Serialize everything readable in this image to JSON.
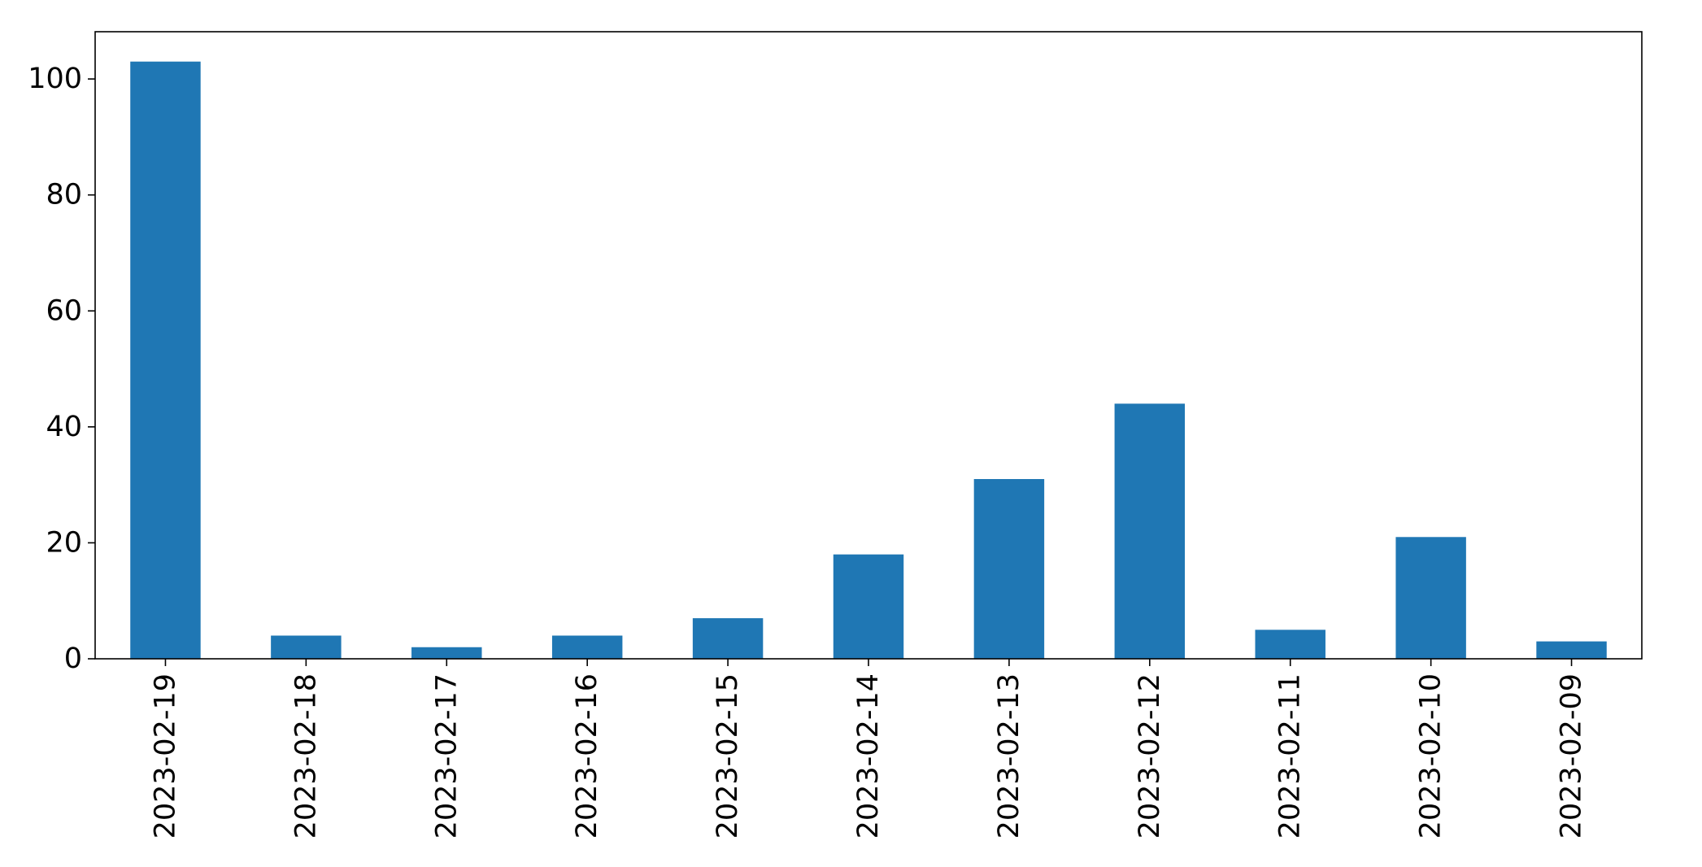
{
  "chart_data": {
    "type": "bar",
    "title": "",
    "xlabel": "",
    "ylabel": "",
    "categories": [
      "2023-02-19",
      "2023-02-18",
      "2023-02-17",
      "2023-02-16",
      "2023-02-15",
      "2023-02-14",
      "2023-02-13",
      "2023-02-12",
      "2023-02-11",
      "2023-02-10",
      "2023-02-09"
    ],
    "values": [
      103,
      4,
      2,
      4,
      7,
      18,
      31,
      44,
      5,
      21,
      3
    ],
    "ylim": [
      0,
      108.15
    ],
    "yticks": [
      0,
      20,
      40,
      60,
      80,
      100
    ],
    "bar_color": "#1f77b4",
    "grid": false,
    "legend": "none"
  }
}
